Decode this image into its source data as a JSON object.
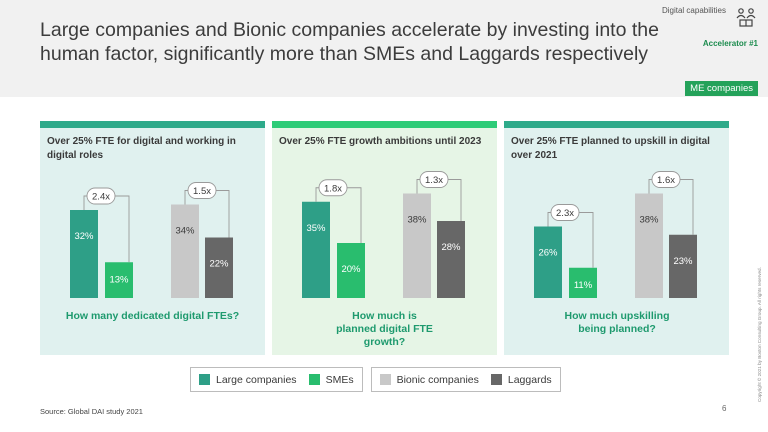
{
  "header": {
    "title": "Large companies and Bionic companies accelerate by investing into the human factor, significantly more than SMEs and Laggards respectively",
    "corner_label": "Digital capabilities",
    "corner_icon": "people-network-icon",
    "accelerator": "Accelerator #1"
  },
  "tag": "ME companies",
  "colors": {
    "large": "#2e9f87",
    "sme": "#29bd6e",
    "bionic": "#c8c8c8",
    "laggards": "#676767",
    "question": "#1e9a6e"
  },
  "legend": {
    "group1": [
      {
        "name": "Large companies",
        "color": "#2e9f87"
      },
      {
        "name": "SMEs",
        "color": "#29bd6e"
      }
    ],
    "group2": [
      {
        "name": "Bionic companies",
        "color": "#c8c8c8"
      },
      {
        "name": "Laggards",
        "color": "#676767"
      }
    ]
  },
  "chart_data": [
    {
      "type": "bar",
      "title": "Over 25% FTE for digital and working in digital roles",
      "question": "How many dedicated digital FTEs?",
      "unit": "%",
      "categories": [
        "Large companies",
        "SMEs",
        "Bionic companies",
        "Laggards"
      ],
      "values": [
        32,
        13,
        34,
        22
      ],
      "value_labels": [
        "32%",
        "13%",
        "34%",
        "22%"
      ],
      "multipliers": [
        "2.4x",
        "1.5x"
      ],
      "ylim": [
        0,
        40
      ]
    },
    {
      "type": "bar",
      "title": "Over 25% FTE growth ambitions until 2023",
      "question": "How much is planned digital FTE growth?",
      "unit": "%",
      "categories": [
        "Large companies",
        "SMEs",
        "Bionic companies",
        "Laggards"
      ],
      "values": [
        35,
        20,
        38,
        28
      ],
      "value_labels": [
        "35%",
        "20%",
        "38%",
        "28%"
      ],
      "multipliers": [
        "1.8x",
        "1.3x"
      ],
      "ylim": [
        0,
        40
      ]
    },
    {
      "type": "bar",
      "title": "Over 25% FTE planned to upskill in digital over 2021",
      "question": "How much upskilling being planned?",
      "unit": "%",
      "categories": [
        "Large companies",
        "SMEs",
        "Bionic companies",
        "Laggards"
      ],
      "values": [
        26,
        11,
        38,
        23
      ],
      "value_labels": [
        "26%",
        "11%",
        "38%",
        "23%"
      ],
      "multipliers": [
        "2.3x",
        "1.6x"
      ],
      "ylim": [
        0,
        40
      ]
    }
  ],
  "footer": {
    "source": "Source: Global DAI study 2021",
    "page": "6",
    "copyright": "Copyright © 2021 by Boston Consulting Group. All rights reserved."
  }
}
